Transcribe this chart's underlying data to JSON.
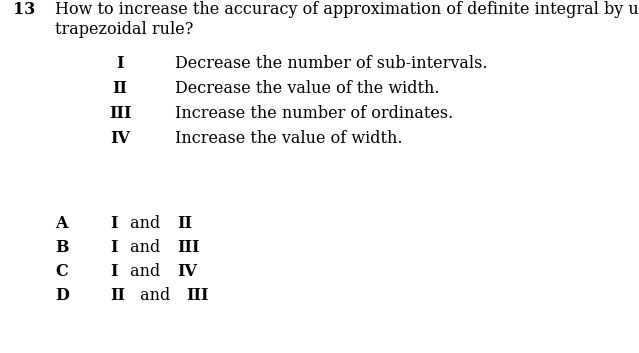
{
  "background_color": "#ffffff",
  "question_number": "13",
  "question_line1": "How to increase the accuracy of approximation of definite integral by using the",
  "question_line2": "trapezoidal rule?",
  "roman_labels": [
    "I",
    "II",
    "III",
    "IV"
  ],
  "roman_texts": [
    "Decrease the number of sub-intervals.",
    "Decrease the value of the width.",
    "Increase the number of ordinates.",
    "Increase the value of width."
  ],
  "option_labels": [
    "A",
    "B",
    "C",
    "D"
  ],
  "option_bold_parts": [
    [
      "I",
      "II"
    ],
    [
      "I",
      "III"
    ],
    [
      "I",
      "IV"
    ],
    [
      "II",
      "III"
    ]
  ],
  "option_connectors": [
    "and",
    "and",
    "and",
    "and"
  ],
  "fontsize": 11.5,
  "fontfamily": "DejaVu Serif"
}
